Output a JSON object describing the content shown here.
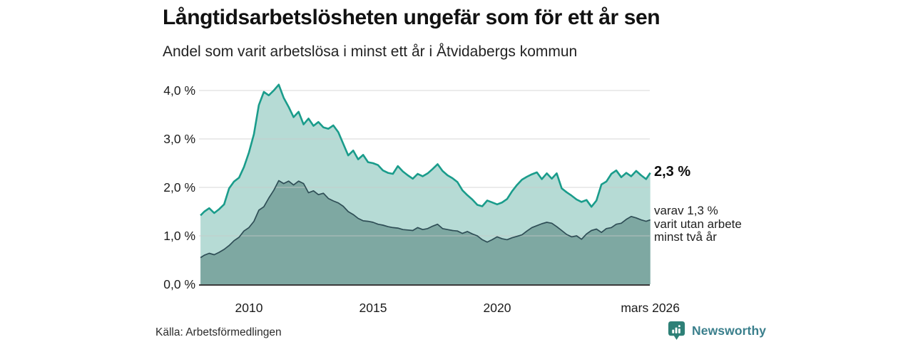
{
  "header": {
    "title": "Långtidsarbetslösheten ungefär som för ett år sen",
    "subtitle": "Andel som varit arbetslösa i minst ett år i Åtvidabergs kommun"
  },
  "annotations": {
    "total_value": "2,3 %",
    "two_year_lines": [
      "varav 1,3 %",
      "varit utan arbete",
      "minst två år"
    ]
  },
  "footer": {
    "source": "Källa: Arbetsförmedlingen",
    "logo_text": "Newsworthy",
    "logo_icon": "bar-chart-pin-badge-icon"
  },
  "colors": {
    "total_line": "#1A9C8B",
    "total_fill": "#B6DBD5",
    "two_year_line": "#2F4E56",
    "two_year_fill": "#7EA8A2",
    "grid": "#C9C9C9",
    "axis": "#3B3B3B",
    "text": "#1C1C1C",
    "logo_badge": "#2E8077",
    "logo_text": "#3A7F8C"
  },
  "chart_data": {
    "type": "area",
    "title": "Långtidsarbetslösheten ungefär som för ett år sen",
    "subtitle": "Andel som varit arbetslösa i minst ett år i Åtvidabergs kommun",
    "x_unit": "decimal_year",
    "xlim": [
      2008.0,
      2026.25
    ],
    "ylim": [
      0,
      4.3
    ],
    "grid": true,
    "legend": "direct-labels-at-line-ends",
    "y_ticks": [
      {
        "v": 0,
        "label": "0,0 %"
      },
      {
        "v": 1,
        "label": "1,0 %"
      },
      {
        "v": 2,
        "label": "2,0 %"
      },
      {
        "v": 3,
        "label": "3,0 %"
      },
      {
        "v": 4,
        "label": "4,0 %"
      }
    ],
    "x_ticks": [
      {
        "v": 2010,
        "label": "2010"
      },
      {
        "v": 2015,
        "label": "2015"
      },
      {
        "v": 2020,
        "label": "2020"
      },
      {
        "v": 2026.17,
        "label": "mars 2026"
      }
    ],
    "x": [
      2008.05,
      2008.2,
      2008.4,
      2008.6,
      2008.8,
      2009.0,
      2009.2,
      2009.4,
      2009.6,
      2009.8,
      2010.0,
      2010.2,
      2010.4,
      2010.6,
      2010.8,
      2011.0,
      2011.2,
      2011.4,
      2011.6,
      2011.8,
      2012.0,
      2012.2,
      2012.4,
      2012.6,
      2012.8,
      2013.0,
      2013.2,
      2013.4,
      2013.6,
      2013.8,
      2014.0,
      2014.2,
      2014.4,
      2014.6,
      2014.8,
      2015.0,
      2015.2,
      2015.4,
      2015.6,
      2015.8,
      2016.0,
      2016.2,
      2016.4,
      2016.6,
      2016.8,
      2017.0,
      2017.2,
      2017.4,
      2017.6,
      2017.8,
      2018.0,
      2018.2,
      2018.4,
      2018.6,
      2018.8,
      2019.0,
      2019.2,
      2019.4,
      2019.6,
      2019.8,
      2020.0,
      2020.2,
      2020.4,
      2020.6,
      2020.8,
      2021.0,
      2021.2,
      2021.4,
      2021.6,
      2021.8,
      2022.0,
      2022.2,
      2022.4,
      2022.6,
      2022.8,
      2023.0,
      2023.2,
      2023.4,
      2023.6,
      2023.8,
      2024.0,
      2024.2,
      2024.4,
      2024.6,
      2024.8,
      2025.0,
      2025.2,
      2025.4,
      2025.6,
      2025.8,
      2026.0,
      2026.17
    ],
    "series": [
      {
        "name": "Andel som varit arbetslösa i minst ett år",
        "last_value_label": "2,3 %",
        "values": [
          1.42,
          1.5,
          1.57,
          1.47,
          1.55,
          1.65,
          1.98,
          2.12,
          2.2,
          2.42,
          2.72,
          3.1,
          3.7,
          3.97,
          3.9,
          4.0,
          4.12,
          3.85,
          3.66,
          3.45,
          3.56,
          3.3,
          3.42,
          3.27,
          3.35,
          3.24,
          3.21,
          3.28,
          3.14,
          2.9,
          2.66,
          2.76,
          2.58,
          2.67,
          2.52,
          2.5,
          2.46,
          2.35,
          2.3,
          2.28,
          2.44,
          2.33,
          2.25,
          2.18,
          2.28,
          2.23,
          2.29,
          2.38,
          2.48,
          2.34,
          2.25,
          2.19,
          2.11,
          1.94,
          1.84,
          1.75,
          1.64,
          1.61,
          1.73,
          1.69,
          1.65,
          1.69,
          1.76,
          1.92,
          2.05,
          2.16,
          2.22,
          2.27,
          2.31,
          2.17,
          2.29,
          2.18,
          2.29,
          1.98,
          1.9,
          1.83,
          1.75,
          1.7,
          1.74,
          1.6,
          1.73,
          2.06,
          2.12,
          2.28,
          2.35,
          2.21,
          2.3,
          2.23,
          2.34,
          2.25,
          2.17,
          2.3
        ]
      },
      {
        "name": "varav utan arbete minst två år",
        "last_value_label": "1,3 %",
        "values": [
          0.55,
          0.6,
          0.64,
          0.61,
          0.66,
          0.72,
          0.8,
          0.9,
          0.97,
          1.1,
          1.17,
          1.3,
          1.53,
          1.6,
          1.78,
          1.94,
          2.14,
          2.08,
          2.13,
          2.05,
          2.13,
          2.08,
          1.89,
          1.93,
          1.85,
          1.88,
          1.77,
          1.72,
          1.68,
          1.61,
          1.5,
          1.44,
          1.36,
          1.31,
          1.3,
          1.28,
          1.24,
          1.22,
          1.19,
          1.17,
          1.16,
          1.13,
          1.12,
          1.11,
          1.17,
          1.13,
          1.15,
          1.2,
          1.24,
          1.15,
          1.13,
          1.11,
          1.1,
          1.05,
          1.09,
          1.04,
          1.0,
          0.92,
          0.87,
          0.92,
          0.98,
          0.94,
          0.92,
          0.96,
          0.99,
          1.02,
          1.1,
          1.17,
          1.21,
          1.25,
          1.28,
          1.26,
          1.19,
          1.11,
          1.03,
          0.98,
          1.0,
          0.93,
          1.04,
          1.11,
          1.14,
          1.07,
          1.15,
          1.17,
          1.24,
          1.26,
          1.34,
          1.4,
          1.37,
          1.33,
          1.3,
          1.33
        ]
      }
    ]
  }
}
